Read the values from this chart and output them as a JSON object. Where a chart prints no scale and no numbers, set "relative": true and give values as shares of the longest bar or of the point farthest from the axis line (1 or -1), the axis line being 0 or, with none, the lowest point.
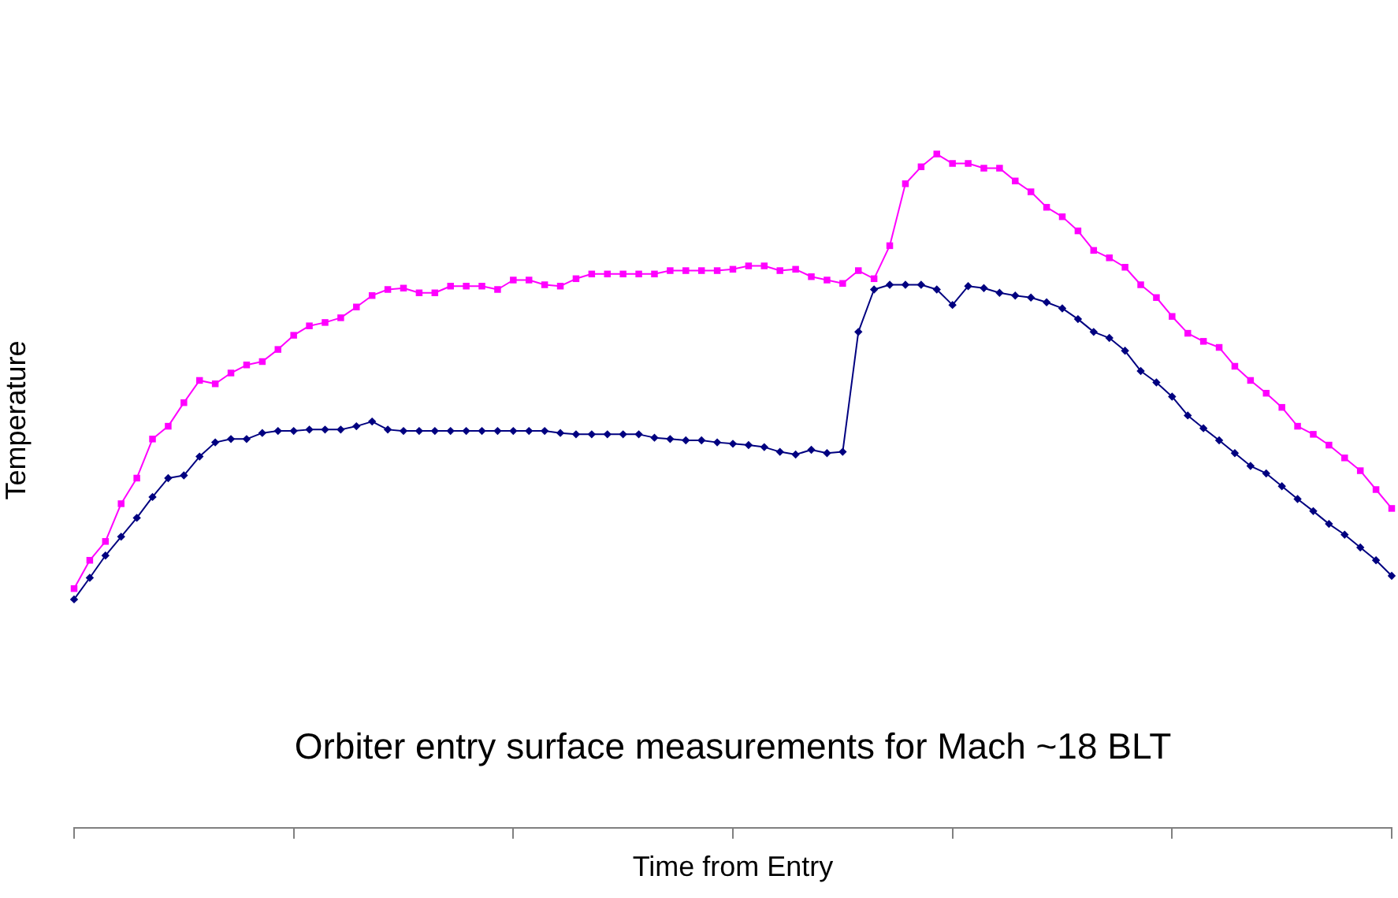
{
  "chart_data": {
    "type": "line",
    "title": "Orbiter entry surface measurements for Mach ~18 BLT",
    "xlabel": "Time from Entry",
    "ylabel": "Temperature",
    "relative": true,
    "legend": false,
    "categories": [
      null,
      null,
      null,
      null,
      null,
      null,
      null,
      null,
      null,
      null,
      null,
      null,
      null,
      null,
      null,
      null,
      null,
      null,
      null,
      null,
      null,
      null,
      null,
      null,
      null,
      null,
      null,
      null,
      null,
      null,
      null,
      null,
      null,
      null,
      null,
      null,
      null,
      null,
      null,
      null,
      null,
      null,
      null,
      null,
      null,
      null,
      null,
      null,
      null,
      null,
      null,
      null,
      null,
      null,
      null,
      null,
      null,
      null,
      null,
      null,
      null,
      null,
      null,
      null,
      null,
      null,
      null,
      null,
      null,
      null,
      null,
      null,
      null,
      null,
      null,
      null,
      null,
      null,
      null,
      null,
      null,
      null,
      null,
      null,
      null
    ],
    "series": [
      {
        "color": "#ff00ff",
        "marker": "square",
        "values": [
          0.355,
          0.397,
          0.425,
          0.481,
          0.519,
          0.577,
          0.596,
          0.631,
          0.664,
          0.659,
          0.675,
          0.687,
          0.692,
          0.71,
          0.731,
          0.745,
          0.75,
          0.757,
          0.773,
          0.79,
          0.799,
          0.801,
          0.794,
          0.794,
          0.804,
          0.804,
          0.804,
          0.799,
          0.813,
          0.813,
          0.806,
          0.804,
          0.815,
          0.822,
          0.822,
          0.822,
          0.822,
          0.822,
          0.827,
          0.827,
          0.827,
          0.827,
          0.829,
          0.834,
          0.834,
          0.827,
          0.829,
          0.818,
          0.813,
          0.808,
          0.827,
          0.815,
          0.864,
          0.956,
          0.981,
          1,
          0.986,
          0.986,
          0.979,
          0.979,
          0.96,
          0.944,
          0.921,
          0.907,
          0.886,
          0.857,
          0.846,
          0.832,
          0.806,
          0.787,
          0.759,
          0.734,
          0.722,
          0.713,
          0.685,
          0.664,
          0.645,
          0.624,
          0.596,
          0.584,
          0.568,
          0.549,
          0.53,
          0.502,
          0.474
        ]
      },
      {
        "color": "#000080",
        "marker": "diamond",
        "values": [
          0.339,
          0.371,
          0.404,
          0.432,
          0.46,
          0.491,
          0.519,
          0.523,
          0.551,
          0.572,
          0.577,
          0.577,
          0.586,
          0.589,
          0.589,
          0.591,
          0.591,
          0.591,
          0.596,
          0.603,
          0.591,
          0.589,
          0.589,
          0.589,
          0.589,
          0.589,
          0.589,
          0.589,
          0.589,
          0.589,
          0.589,
          0.586,
          0.584,
          0.584,
          0.584,
          0.584,
          0.584,
          0.579,
          0.577,
          0.575,
          0.575,
          0.572,
          0.57,
          0.568,
          0.565,
          0.558,
          0.554,
          0.561,
          0.556,
          0.558,
          0.736,
          0.799,
          0.806,
          0.806,
          0.806,
          0.799,
          0.776,
          0.804,
          0.801,
          0.794,
          0.79,
          0.787,
          0.78,
          0.771,
          0.755,
          0.736,
          0.727,
          0.708,
          0.678,
          0.661,
          0.64,
          0.612,
          0.593,
          0.575,
          0.556,
          0.537,
          0.526,
          0.507,
          0.488,
          0.47,
          0.451,
          0.435,
          0.416,
          0.397,
          0.374
        ]
      }
    ]
  }
}
